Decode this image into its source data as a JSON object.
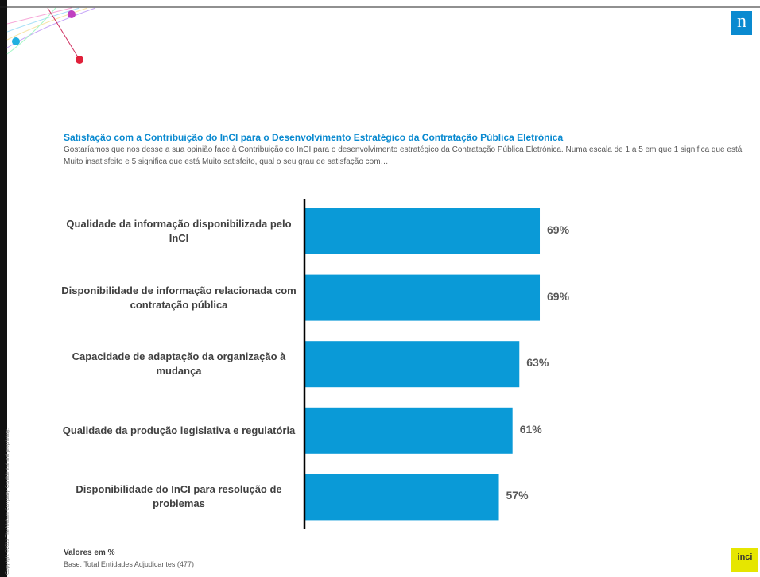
{
  "chart_data": {
    "type": "hbar",
    "title": "Satisfação com a Contribuição do InCI para o Desenvolvimento Estratégico da Contratação Pública Eletrónica",
    "subtitle": "Gostaríamos que nos desse a sua opinião face à Contribuição do InCI para o desenvolvimento estratégico da Contratação Pública Eletrónica.  Numa escala de 1 a 5 em que 1 significa que está Muito insatisfeito e 5 significa que está Muito satisfeito, qual o seu grau de satisfação com…",
    "categories": [
      "Qualidade da informação disponibilizada pelo InCI",
      "Disponibilidade de informação relacionada com contratação pública",
      "Capacidade de adaptação da organização à mudança",
      "Qualidade da produção legislativa e regulatória",
      "Disponibilidade do InCI para resolução de problemas"
    ],
    "values": [
      69,
      69,
      63,
      61,
      57
    ],
    "value_labels": [
      "69%",
      "69%",
      "63%",
      "61%",
      "57%"
    ],
    "color": "#0a9ad7",
    "note": "Valores em %",
    "base": "Base: Total Entidades Adjudicantes (477)"
  },
  "copyright": "Copyright ©2013 The Nielsen Company. Confidential and proprietary.",
  "logo": "n",
  "partner_logo": "inci"
}
